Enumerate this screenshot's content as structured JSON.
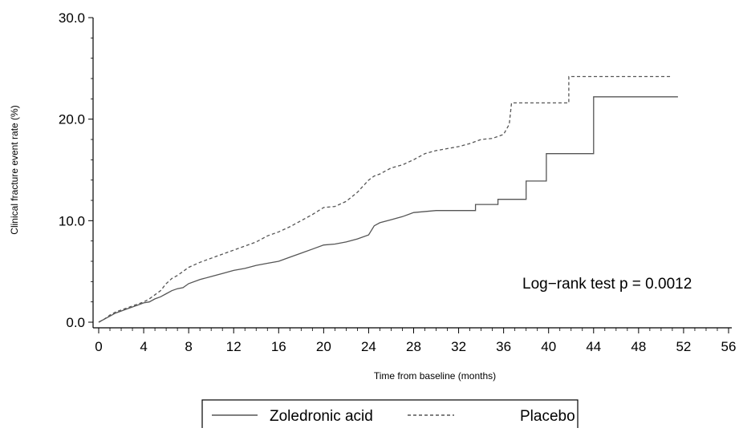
{
  "chart_data": {
    "type": "line",
    "title": "",
    "xlabel": "Time from baseline (months)",
    "ylabel": "Clinical fracture event rate (%)",
    "xlim": [
      0,
      56
    ],
    "ylim": [
      0,
      30
    ],
    "xticks": [
      "0",
      "4",
      "8",
      "12",
      "16",
      "20",
      "24",
      "28",
      "32",
      "36",
      "40",
      "44",
      "48",
      "52",
      "56"
    ],
    "yticks": [
      "0.0",
      "10.0",
      "20.0",
      "30.0"
    ],
    "grid": false,
    "legend_position": "bottom",
    "annotation": "Log−rank test p = 0.0012",
    "series": [
      {
        "name": "Zoledronic acid",
        "style": "solid",
        "color": "#555555",
        "points": [
          [
            0,
            0
          ],
          [
            0.5,
            0.3
          ],
          [
            1,
            0.6
          ],
          [
            1.5,
            0.9
          ],
          [
            2,
            1.1
          ],
          [
            2.5,
            1.3
          ],
          [
            3,
            1.5
          ],
          [
            3.5,
            1.7
          ],
          [
            4,
            1.9
          ],
          [
            4.5,
            2.0
          ],
          [
            5,
            2.3
          ],
          [
            5.5,
            2.5
          ],
          [
            6,
            2.8
          ],
          [
            6.5,
            3.1
          ],
          [
            7,
            3.3
          ],
          [
            7.5,
            3.4
          ],
          [
            8,
            3.8
          ],
          [
            9,
            4.2
          ],
          [
            10,
            4.5
          ],
          [
            11,
            4.8
          ],
          [
            12,
            5.1
          ],
          [
            13,
            5.3
          ],
          [
            14,
            5.6
          ],
          [
            15,
            5.8
          ],
          [
            16,
            6.0
          ],
          [
            17,
            6.4
          ],
          [
            18,
            6.8
          ],
          [
            19,
            7.2
          ],
          [
            20,
            7.6
          ],
          [
            21,
            7.7
          ],
          [
            22,
            7.9
          ],
          [
            23,
            8.2
          ],
          [
            24,
            8.6
          ],
          [
            24.5,
            9.5
          ],
          [
            25,
            9.8
          ],
          [
            26,
            10.1
          ],
          [
            27,
            10.4
          ],
          [
            28,
            10.8
          ],
          [
            30,
            11.0
          ],
          [
            33.5,
            11.0
          ],
          [
            33.5,
            11.6
          ],
          [
            35.5,
            11.6
          ],
          [
            35.5,
            12.1
          ],
          [
            38,
            12.1
          ],
          [
            38,
            13.9
          ],
          [
            39.8,
            13.9
          ],
          [
            39.8,
            16.6
          ],
          [
            44,
            16.6
          ],
          [
            44,
            22.2
          ],
          [
            51.5,
            22.2
          ]
        ]
      },
      {
        "name": "Placebo",
        "style": "dashed",
        "color": "#555555",
        "points": [
          [
            0,
            0
          ],
          [
            0.5,
            0.3
          ],
          [
            1,
            0.7
          ],
          [
            1.5,
            1.0
          ],
          [
            2,
            1.2
          ],
          [
            2.5,
            1.4
          ],
          [
            3,
            1.6
          ],
          [
            3.5,
            1.8
          ],
          [
            4,
            2.0
          ],
          [
            4.5,
            2.3
          ],
          [
            5,
            2.7
          ],
          [
            5.5,
            3.1
          ],
          [
            6,
            3.8
          ],
          [
            6.5,
            4.3
          ],
          [
            7,
            4.6
          ],
          [
            7.5,
            5.0
          ],
          [
            8,
            5.4
          ],
          [
            9,
            5.9
          ],
          [
            10,
            6.3
          ],
          [
            11,
            6.7
          ],
          [
            12,
            7.1
          ],
          [
            13,
            7.5
          ],
          [
            14,
            7.9
          ],
          [
            15,
            8.5
          ],
          [
            16,
            8.9
          ],
          [
            17,
            9.4
          ],
          [
            18,
            10.0
          ],
          [
            19,
            10.6
          ],
          [
            20,
            11.3
          ],
          [
            21,
            11.4
          ],
          [
            22,
            11.9
          ],
          [
            23,
            12.8
          ],
          [
            24,
            14.0
          ],
          [
            24.5,
            14.4
          ],
          [
            25,
            14.6
          ],
          [
            26,
            15.2
          ],
          [
            27,
            15.5
          ],
          [
            28,
            16.0
          ],
          [
            29,
            16.6
          ],
          [
            30,
            16.9
          ],
          [
            31,
            17.1
          ],
          [
            32,
            17.3
          ],
          [
            33,
            17.6
          ],
          [
            34,
            18.0
          ],
          [
            35,
            18.1
          ],
          [
            36,
            18.5
          ],
          [
            36.5,
            19.5
          ],
          [
            36.7,
            21.6
          ],
          [
            41.8,
            21.6
          ],
          [
            41.8,
            24.2
          ],
          [
            50.8,
            24.2
          ]
        ]
      }
    ]
  }
}
